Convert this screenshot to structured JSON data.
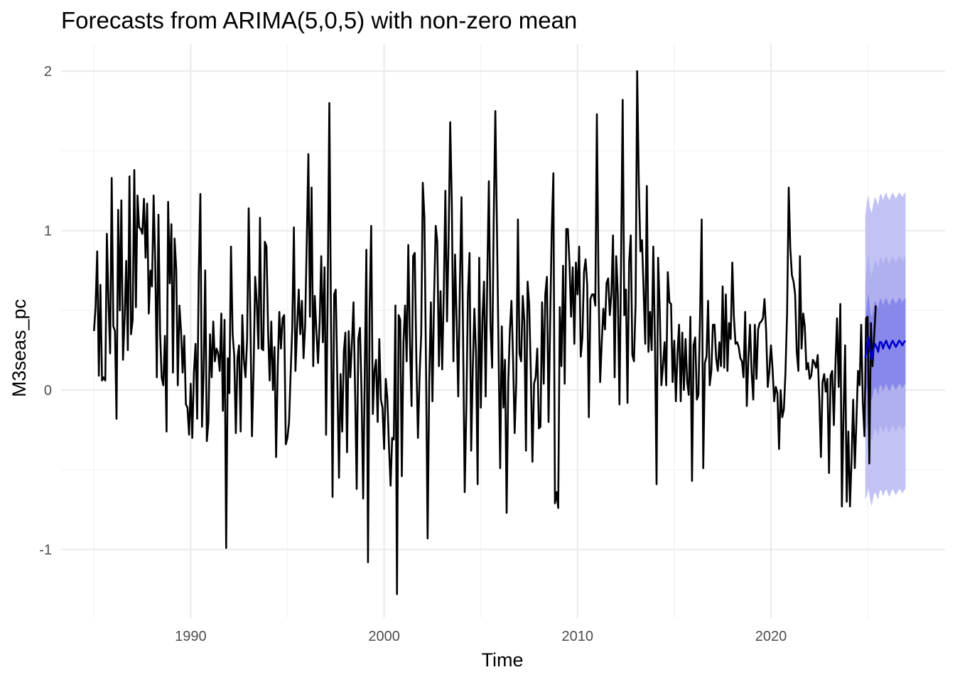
{
  "chart_data": {
    "type": "line",
    "title": "Forecasts from ARIMA(5,0,5) with non-zero mean",
    "xlabel": "Time",
    "ylabel": "M3seas_pc",
    "xlim": [
      1983.3,
      2029.0
    ],
    "ylim": [
      -1.43,
      2.17
    ],
    "x_ticks": [
      1990,
      2000,
      2010,
      2020
    ],
    "x_tick_labels": [
      "1990",
      "2000",
      "2010",
      "2020"
    ],
    "y_ticks": [
      -1,
      0,
      1,
      2
    ],
    "y_tick_labels": [
      "-1",
      "0",
      "1",
      "2"
    ],
    "grid": true,
    "colors": {
      "history": "#000000",
      "forecast": "#0000cc",
      "band_95": "#c2c2f4",
      "band_80": "#b0b0ef",
      "band_50": "#8888ea",
      "grid_major": "#ebebeb",
      "grid_minor": "#f2f2f2",
      "text": "#4d4d4d"
    },
    "series": [
      {
        "role": "history",
        "start": 1985.0,
        "frequency": 12,
        "values": [
          0.37,
          0.52,
          0.87,
          0.09,
          0.66,
          0.06,
          0.08,
          0.06,
          0.98,
          0.55,
          0.23,
          1.33,
          0.4,
          0.37,
          -0.18,
          1.13,
          0.5,
          1.19,
          0.19,
          0.45,
          0.81,
          0.25,
          1.34,
          0.35,
          0.44,
          1.38,
          0.52,
          1.22,
          1.02,
          1.01,
          0.98,
          1.2,
          0.83,
          1.17,
          0.48,
          0.75,
          0.65,
          1.22,
          0.79,
          0.08,
          1.1,
          0.36,
          0.08,
          0.03,
          0.34,
          -0.26,
          1.18,
          0.67,
          1.04,
          0.11,
          0.95,
          0.76,
          0.03,
          0.53,
          0.37,
          0.11,
          0.34,
          -0.09,
          -0.11,
          -0.28,
          0.04,
          -0.3,
          0.11,
          0.29,
          -0.18,
          0.73,
          1.23,
          -0.23,
          0.1,
          0.75,
          -0.32,
          -0.2,
          0.35,
          0.08,
          0.43,
          0.18,
          0.26,
          0.23,
          0.12,
          0.48,
          -0.13,
          0.44,
          -0.99,
          0.2,
          -0.02,
          0.9,
          0.35,
          0.22,
          -0.27,
          0.2,
          0.28,
          -0.26,
          0.47,
          0.19,
          0.08,
          0.32,
          1.14,
          0.46,
          -0.29,
          0.11,
          0.71,
          0.55,
          0.26,
          1.08,
          0.26,
          0.25,
          0.93,
          0.9,
          0.37,
          0.06,
          0.43,
          0.0,
          0.27,
          -0.42,
          0.15,
          0.49,
          0.26,
          0.45,
          0.47,
          -0.34,
          -0.3,
          -0.2,
          0.1,
          0.39,
          1.02,
          0.12,
          0.39,
          0.63,
          0.35,
          0.56,
          0.2,
          0.4,
          0.93,
          1.48,
          0.46,
          1.27,
          0.15,
          0.59,
          0.37,
          0.17,
          0.43,
          0.84,
          0.3,
          0.77,
          -0.28,
          0.6,
          1.8,
          0.51,
          -0.67,
          0.6,
          0.63,
          0.05,
          -0.55,
          0.1,
          -0.26,
          0.24,
          0.36,
          -0.39,
          0.37,
          0.08,
          0.29,
          0.55,
          -0.02,
          -0.62,
          0.32,
          0.39,
          -0.02,
          -0.68,
          0.12,
          0.88,
          -1.08,
          0.5,
          1.03,
          -0.15,
          0.12,
          0.19,
          -0.2,
          0.32,
          -0.06,
          -0.11,
          -0.37,
          0.07,
          -0.05,
          -0.35,
          -0.6,
          -0.3,
          -0.31,
          0.53,
          -1.28,
          0.47,
          0.44,
          -0.54,
          0.3,
          0.53,
          0.18,
          0.91,
          0.3,
          -0.1,
          0.84,
          0.86,
          0.18,
          -0.3,
          0.09,
          0.35,
          1.3,
          1.08,
          0.13,
          -0.93,
          0.06,
          0.55,
          -0.07,
          0.58,
          1.03,
          0.93,
          0.15,
          0.62,
          0.13,
          0.6,
          1.25,
          0.43,
          0.93,
          1.68,
          1.16,
          0.18,
          0.85,
          0.42,
          -0.04,
          0.66,
          1.21,
          0.34,
          -0.64,
          -0.11,
          0.59,
          0.86,
          -0.38,
          0.14,
          0.51,
          0.23,
          -0.59,
          0.83,
          -0.11,
          0.45,
          0.68,
          -0.04,
          0.72,
          1.31,
          0.41,
          0.14,
          1.06,
          1.75,
          1.0,
          0.26,
          -0.49,
          0.4,
          -0.11,
          0.19,
          -0.77,
          0.05,
          0.37,
          0.56,
          0.19,
          -0.27,
          0.06,
          1.07,
          0.23,
          0.18,
          0.59,
          0.43,
          -0.38,
          0.68,
          0.54,
          0.12,
          -0.45,
          0.04,
          0.08,
          0.26,
          -0.24,
          -0.23,
          0.55,
          0.04,
          0.6,
          0.71,
          -0.2,
          0.41,
          1.0,
          1.36,
          -0.71,
          -0.64,
          -0.74,
          0.52,
          0.15,
          0.78,
          0.04,
          1.01,
          1.01,
          0.79,
          0.46,
          0.77,
          0.29,
          0.8,
          0.6,
          0.9,
          0.21,
          0.33,
          0.74,
          0.82,
          0.66,
          -0.17,
          0.57,
          0.6,
          0.6,
          0.53,
          1.73,
          0.67,
          0.05,
          0.29,
          0.51,
          0.38,
          0.67,
          0.7,
          0.47,
          0.6,
          0.97,
          0.08,
          0.84,
          0.6,
          -0.09,
          0.78,
          1.82,
          0.47,
          0.63,
          -0.08,
          0.8,
          0.97,
          0.22,
          0.18,
          0.54,
          2.0,
          1.3,
          0.87,
          0.94,
          0.62,
          0.29,
          1.28,
          0.24,
          0.49,
          0.25,
          0.9,
          0.31,
          -0.59,
          0.83,
          0.5,
          0.03,
          0.15,
          0.3,
          0.03,
          0.74,
          0.55,
          0.54,
          0.05,
          0.31,
          -0.07,
          0.23,
          0.41,
          -0.07,
          0.36,
          0.0,
          0.32,
          0.05,
          -0.03,
          0.46,
          -0.57,
          0.28,
          0.33,
          -0.06,
          -0.03,
          0.46,
          1.07,
          -0.49,
          0.17,
          0.21,
          0.56,
          0.03,
          0.12,
          0.41,
          0.41,
          0.2,
          0.12,
          0.3,
          0.15,
          0.65,
          0.14,
          0.6,
          0.12,
          0.42,
          0.32,
          0.8,
          0.46,
          0.29,
          0.3,
          0.27,
          0.2,
          0.18,
          0.08,
          0.49,
          -0.1,
          0.21,
          0.41,
          0.11,
          -0.06,
          0.41,
          0.07,
          0.38,
          0.42,
          0.43,
          0.45,
          0.57,
          0.37,
          0.02,
          0.12,
          0.28,
          0.13,
          -0.07,
          0.02,
          -0.02,
          -0.37,
          0.0,
          -0.17,
          -0.12,
          0.11,
          0.48,
          1.27,
          0.89,
          0.72,
          0.68,
          0.6,
          0.24,
          0.12,
          0.84,
          0.26,
          0.48,
          0.4,
          0.13,
          0.17,
          0.07,
          0.09,
          0.19,
          0.17,
          0.14,
          0.22,
          -0.06,
          -0.42,
          0.05,
          0.1,
          -0.01,
          0.07,
          -0.52,
          0.09,
          0.12,
          -0.22,
          0.15,
          0.45,
          0.02,
          0.54,
          -0.73,
          -0.15,
          0.28,
          -0.7,
          -0.26,
          -0.73,
          -0.44,
          -0.06,
          -0.49,
          -0.2,
          0.12,
          0.03,
          0.41,
          -0.08,
          -0.29,
          0.45,
          0.46,
          -0.46,
          0.42,
          0.15,
          0.33,
          0.53
        ]
      },
      {
        "role": "forecast",
        "name": "point forecast",
        "start": 2024.875,
        "frequency": 12,
        "values": [
          0.2,
          0.27,
          0.33,
          0.24,
          0.19,
          0.25,
          0.29,
          0.27,
          0.24,
          0.3,
          0.3,
          0.26,
          0.29,
          0.31,
          0.28,
          0.26,
          0.29,
          0.31,
          0.29,
          0.27,
          0.29,
          0.31,
          0.3,
          0.28,
          0.3,
          0.31
        ],
        "lo50": [
          -0.03,
          0.0,
          0.05,
          -0.03,
          -0.07,
          -0.01,
          0.02,
          0.0,
          -0.03,
          0.03,
          0.03,
          -0.01,
          0.02,
          0.04,
          0.01,
          -0.01,
          0.02,
          0.04,
          0.02,
          0.0,
          0.02,
          0.04,
          0.03,
          0.01,
          0.03,
          0.04
        ],
        "hi50": [
          0.43,
          0.54,
          0.61,
          0.51,
          0.45,
          0.51,
          0.56,
          0.54,
          0.51,
          0.57,
          0.57,
          0.53,
          0.56,
          0.58,
          0.55,
          0.53,
          0.56,
          0.58,
          0.56,
          0.54,
          0.56,
          0.58,
          0.57,
          0.55,
          0.57,
          0.58
        ],
        "lo80": [
          -0.24,
          -0.24,
          -0.2,
          -0.28,
          -0.33,
          -0.27,
          -0.24,
          -0.26,
          -0.29,
          -0.23,
          -0.23,
          -0.27,
          -0.24,
          -0.22,
          -0.25,
          -0.27,
          -0.24,
          -0.22,
          -0.24,
          -0.26,
          -0.24,
          -0.22,
          -0.23,
          -0.25,
          -0.23,
          -0.22
        ],
        "hi80": [
          0.64,
          0.78,
          0.86,
          0.76,
          0.71,
          0.77,
          0.82,
          0.8,
          0.77,
          0.83,
          0.83,
          0.79,
          0.82,
          0.84,
          0.81,
          0.79,
          0.82,
          0.84,
          0.82,
          0.8,
          0.82,
          0.84,
          0.83,
          0.81,
          0.83,
          0.84
        ],
        "lo95": [
          -0.69,
          -0.66,
          -0.62,
          -0.69,
          -0.73,
          -0.67,
          -0.64,
          -0.66,
          -0.69,
          -0.63,
          -0.63,
          -0.67,
          -0.64,
          -0.62,
          -0.65,
          -0.67,
          -0.64,
          -0.62,
          -0.64,
          -0.66,
          -0.64,
          -0.62,
          -0.63,
          -0.65,
          -0.63,
          -0.62
        ],
        "hi95": [
          1.09,
          1.18,
          1.22,
          1.14,
          1.11,
          1.17,
          1.21,
          1.19,
          1.16,
          1.22,
          1.23,
          1.19,
          1.22,
          1.24,
          1.21,
          1.19,
          1.22,
          1.24,
          1.22,
          1.2,
          1.22,
          1.24,
          1.23,
          1.21,
          1.23,
          1.24
        ]
      }
    ]
  }
}
